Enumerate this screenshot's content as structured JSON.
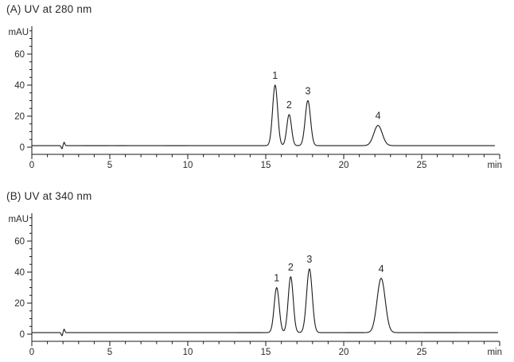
{
  "figure_label": "HPLC chromatograms at two UV wavelengths",
  "chart_data": [
    {
      "type": "line",
      "panel": "A",
      "title": "(A) UV at 280 nm",
      "xlabel": "min",
      "ylabel": "mAU",
      "xlim": [
        0,
        30
      ],
      "ylim": [
        -5,
        78
      ],
      "grid": false,
      "legend": "none",
      "x_major_ticks": [
        0,
        5,
        10,
        15,
        20,
        25,
        30
      ],
      "x_major_tick_labels": [
        "0",
        "5",
        "10",
        "15",
        "20",
        "25",
        "min"
      ],
      "x_minor_step_min": 1,
      "y_major_ticks": [
        0,
        20,
        40,
        60
      ],
      "y_minor_step_mAU": 5,
      "baseline_mAU": 1,
      "injection_artifact_min": 2.0,
      "trace_end_min": 29.7,
      "peaks": [
        {
          "label": "1",
          "rt_min": 15.6,
          "height_mAU": 39,
          "sigma_min": 0.16
        },
        {
          "label": "2",
          "rt_min": 16.5,
          "height_mAU": 20,
          "sigma_min": 0.15
        },
        {
          "label": "3",
          "rt_min": 17.7,
          "height_mAU": 29,
          "sigma_min": 0.17
        },
        {
          "label": "4",
          "rt_min": 22.2,
          "height_mAU": 13,
          "sigma_min": 0.27
        }
      ],
      "gray_baseline_segments_min": [
        [
          3.3,
          4.9
        ],
        [
          5.4,
          6.1
        ],
        [
          8.5,
          10.0
        ]
      ]
    },
    {
      "type": "line",
      "panel": "B",
      "title": "(B) UV at 340 nm",
      "xlabel": "min",
      "ylabel": "mAU",
      "xlim": [
        0,
        30
      ],
      "ylim": [
        -5,
        78
      ],
      "grid": false,
      "legend": "none",
      "x_major_ticks": [
        0,
        5,
        10,
        15,
        20,
        25,
        30
      ],
      "x_major_tick_labels": [
        "0",
        "5",
        "10",
        "15",
        "20",
        "25",
        "min"
      ],
      "x_minor_step_min": 1,
      "y_major_ticks": [
        0,
        20,
        40,
        60
      ],
      "y_minor_step_mAU": 5,
      "baseline_mAU": 1,
      "injection_artifact_min": 2.0,
      "trace_end_min": 29.9,
      "peaks": [
        {
          "label": "1",
          "rt_min": 15.7,
          "height_mAU": 29,
          "sigma_min": 0.16
        },
        {
          "label": "2",
          "rt_min": 16.6,
          "height_mAU": 36,
          "sigma_min": 0.16
        },
        {
          "label": "3",
          "rt_min": 17.8,
          "height_mAU": 41,
          "sigma_min": 0.18
        },
        {
          "label": "4",
          "rt_min": 22.4,
          "height_mAU": 35,
          "sigma_min": 0.26
        }
      ],
      "gray_baseline_segments_min": [
        [
          13.2,
          14.8
        ],
        [
          20.1,
          21.3
        ],
        [
          25.1,
          27.3
        ]
      ]
    }
  ],
  "colors": {
    "trace": "#1a1a1a",
    "axis": "#1a1a1a",
    "text": "#2a2a2a",
    "gray_trace": "#c8c8c8",
    "background": "#ffffff"
  }
}
